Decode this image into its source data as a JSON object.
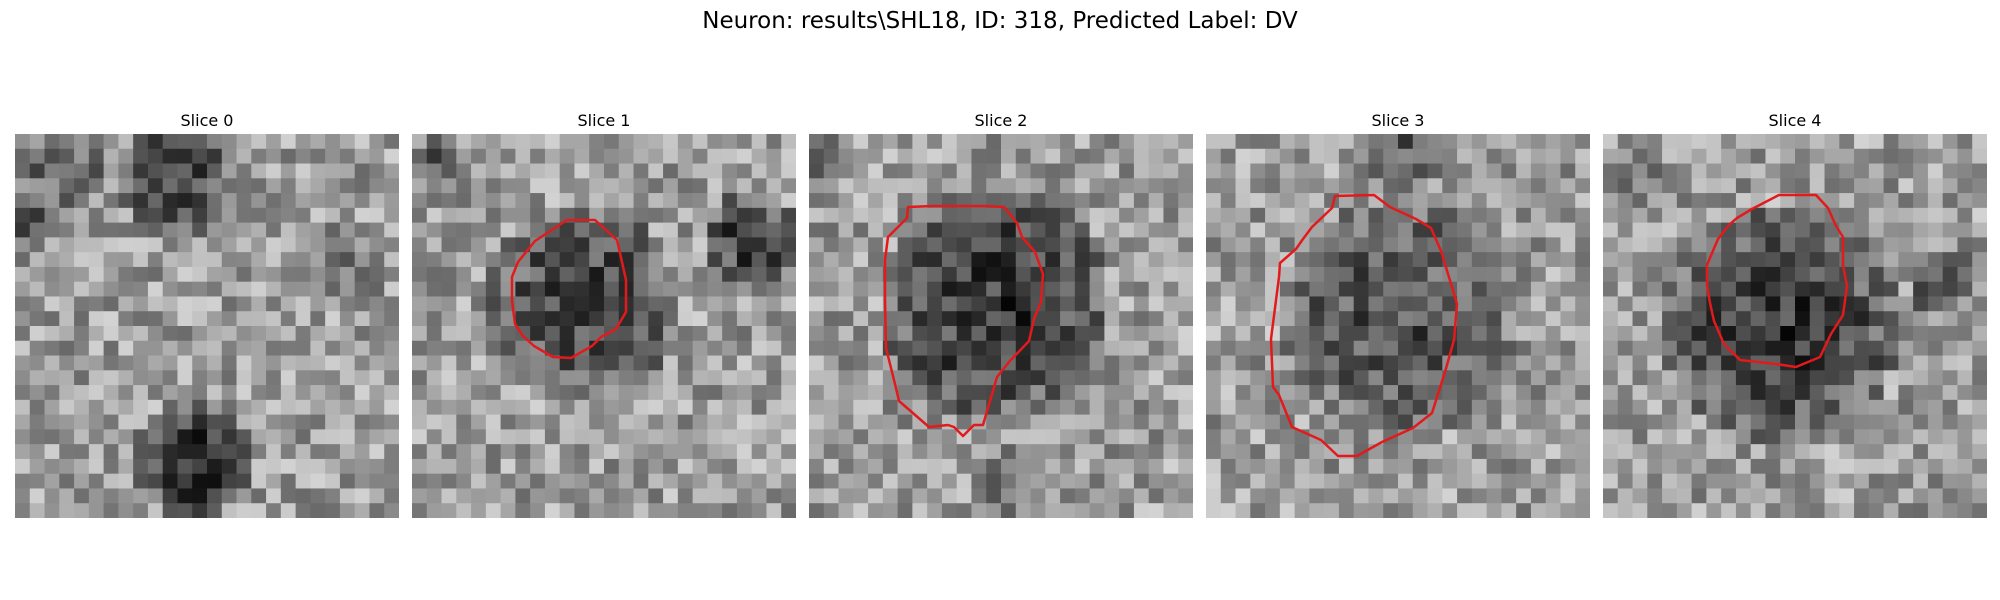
{
  "figure": {
    "title": "Neuron: results\\SHL18, ID: 318, Predicted Label: DV"
  },
  "colors": {
    "background": "#ffffff",
    "contour": "#e31a1c"
  },
  "slices": [
    {
      "title": "Slice 0",
      "has_contour": false
    },
    {
      "title": "Slice 1",
      "has_contour": true
    },
    {
      "title": "Slice 2",
      "has_contour": true
    },
    {
      "title": "Slice 3",
      "has_contour": true
    },
    {
      "title": "Slice 4",
      "has_contour": true
    }
  ]
}
